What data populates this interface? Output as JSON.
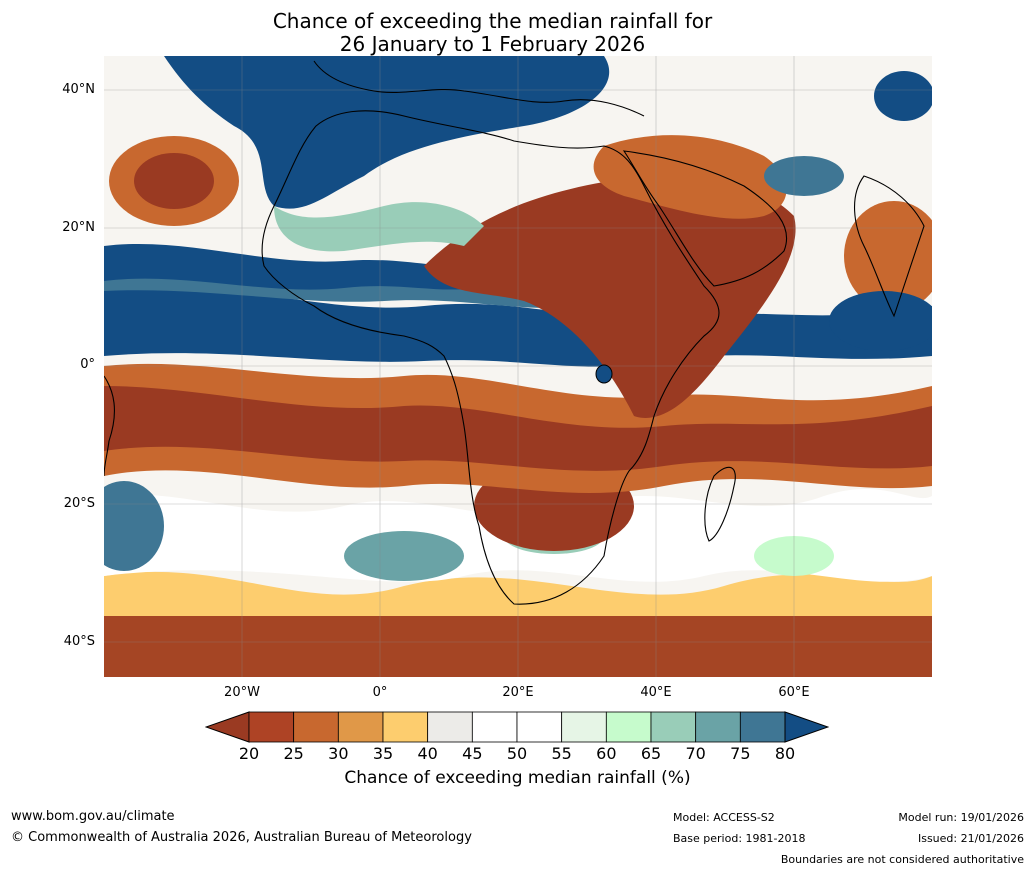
{
  "title": {
    "line1": "Chance of exceeding the median rainfall for",
    "line2": "26 January to 1 February 2026"
  },
  "map": {
    "lat_ticks": [
      "40°N",
      "20°N",
      "0°",
      "20°S",
      "40°S"
    ],
    "lon_ticks": [
      "20°W",
      "0°",
      "20°E",
      "40°E",
      "60°E"
    ],
    "description_colors": {
      "very_dry": "#9a3a22",
      "dry": "#c1622f",
      "moderately_dry": "#e09848",
      "slightly_dry": "#fdcd6e",
      "neutral": "#ecebe8",
      "white": "#ffffff",
      "slightly_wet": "#e6f5e6",
      "wet": "#c6fbcc",
      "moderately_wet": "#99cdb8",
      "very_wet": "#6aa3a6",
      "extremely_wet": "#3f7694",
      "max_wet": "#134d84"
    }
  },
  "colorbar": {
    "ticks": [
      "20",
      "25",
      "30",
      "35",
      "40",
      "45",
      "50",
      "55",
      "60",
      "65",
      "70",
      "75",
      "80"
    ],
    "colors": [
      "#9a3a22",
      "#ae4325",
      "#c8682f",
      "#e09848",
      "#fdcd6e",
      "#ecebe8",
      "#ffffff",
      "#ffffff",
      "#e6f5e6",
      "#c6fbcc",
      "#99cdb8",
      "#6aa3a6",
      "#3f7694",
      "#134d84"
    ],
    "label": "Chance of exceeding median rainfall (%)"
  },
  "footer": {
    "website": "www.bom.gov.au/climate",
    "copyright": "© Commonwealth of Australia 2026, Australian Bureau of Meteorology",
    "model": "Model: ACCESS-S2",
    "base_period": "Base period: 1981-2018",
    "model_run": "Model run: 19/01/2026",
    "issued": "Issued: 21/01/2026",
    "disclaimer": "Boundaries are not considered authoritative"
  }
}
